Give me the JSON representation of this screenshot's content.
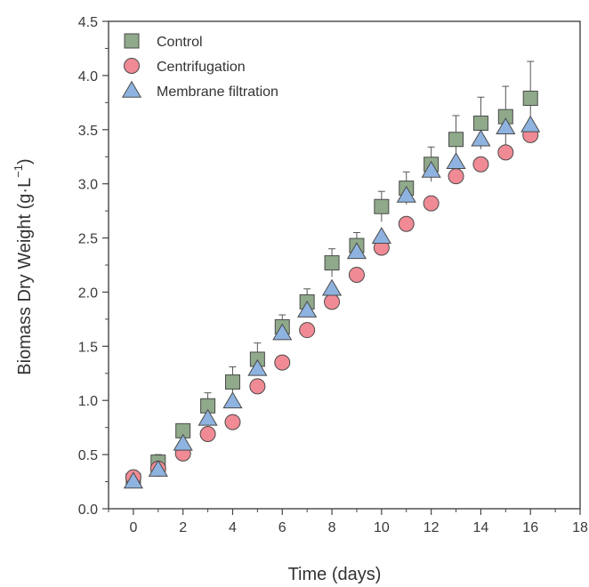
{
  "chart_data": {
    "type": "scatter",
    "xlabel": "Time (days)",
    "ylabel": "Biomass Dry Weight (g·L",
    "ylabel_sup": "−1",
    "ylabel_close": ")",
    "xlim": [
      -1,
      18
    ],
    "ylim": [
      0,
      4.5
    ],
    "xticks": [
      0,
      2,
      4,
      6,
      8,
      10,
      12,
      14,
      16,
      18
    ],
    "yticks": [
      0.0,
      0.5,
      1.0,
      1.5,
      2.0,
      2.5,
      3.0,
      3.5,
      4.0,
      4.5
    ],
    "xtick_labels": [
      "0",
      "2",
      "4",
      "6",
      "8",
      "10",
      "12",
      "14",
      "16",
      "18"
    ],
    "ytick_labels": [
      "0.0",
      "0.5",
      "1.0",
      "1.5",
      "2.0",
      "2.5",
      "3.0",
      "3.5",
      "4.0",
      "4.5"
    ],
    "legend_position": "top-left",
    "grid": false,
    "series": [
      {
        "name": "Control",
        "marker": "square",
        "color": "#8fa98a",
        "x": [
          0,
          1,
          2,
          3,
          4,
          5,
          6,
          7,
          8,
          9,
          10,
          11,
          12,
          13,
          14,
          15,
          16
        ],
        "y": [
          0.26,
          0.43,
          0.72,
          0.95,
          1.17,
          1.38,
          1.68,
          1.91,
          2.27,
          2.43,
          2.79,
          2.96,
          3.18,
          3.41,
          3.56,
          3.62,
          3.79
        ],
        "err": [
          0.04,
          0.07,
          0.05,
          0.12,
          0.14,
          0.15,
          0.11,
          0.12,
          0.13,
          0.12,
          0.14,
          0.15,
          0.16,
          0.22,
          0.24,
          0.28,
          0.34
        ]
      },
      {
        "name": "Centrifugation",
        "marker": "circle",
        "color": "#f08a94",
        "x": [
          0,
          1,
          2,
          3,
          4,
          5,
          6,
          7,
          8,
          9,
          10,
          11,
          12,
          13,
          14,
          15,
          16
        ],
        "y": [
          0.29,
          0.37,
          0.51,
          0.69,
          0.8,
          1.13,
          1.35,
          1.65,
          1.91,
          2.16,
          2.41,
          2.63,
          2.82,
          3.07,
          3.18,
          3.29,
          3.45
        ]
      },
      {
        "name": "Membrane filtration",
        "marker": "triangle",
        "color": "#8fb3e0",
        "x": [
          0,
          1,
          2,
          3,
          4,
          5,
          6,
          7,
          8,
          9,
          10,
          11,
          12,
          13,
          14,
          15,
          16
        ],
        "y": [
          0.25,
          0.36,
          0.6,
          0.83,
          0.99,
          1.29,
          1.62,
          1.83,
          2.03,
          2.37,
          2.51,
          2.89,
          3.12,
          3.2,
          3.41,
          3.52,
          3.54
        ]
      }
    ]
  }
}
